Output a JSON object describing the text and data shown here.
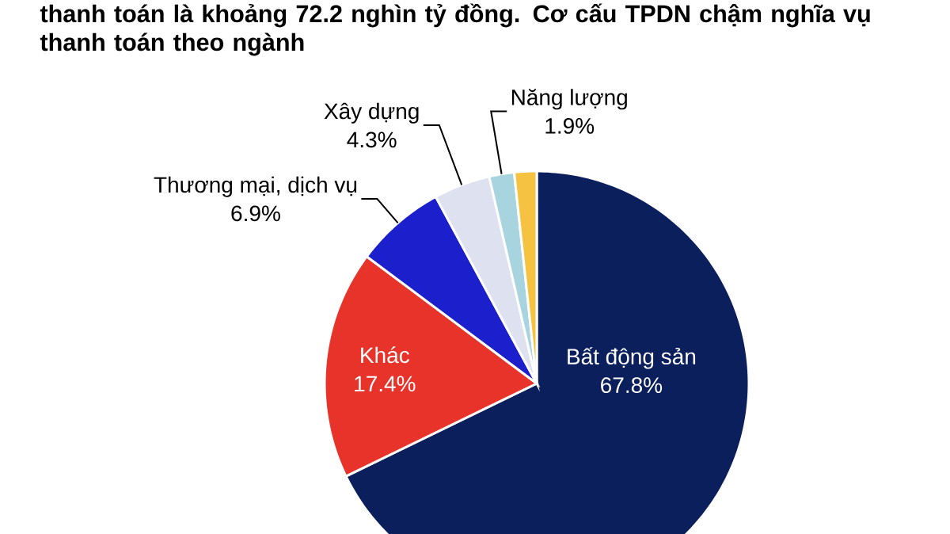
{
  "chart_data": {
    "type": "pie",
    "title": "thanh toán là khoảng 72.2 nghìn tỷ đồng. Cơ cấu TPDN chậm nghĩa vụ thanh toán theo ngành",
    "categories": [
      "Bất động sản",
      "Khác",
      "Thương mại, dịch vụ",
      "Xây dựng",
      "Năng lượng",
      null
    ],
    "values": [
      67.8,
      17.4,
      6.9,
      4.3,
      1.9,
      1.7
    ],
    "value_labels": [
      "67.8%",
      "17.4%",
      "6.9%",
      "4.3%",
      "1.9%",
      null
    ],
    "colors": [
      "#0b1f5c",
      "#e8332a",
      "#1c1fcc",
      "#dde1f0",
      "#a8d4e0",
      "#f5c242"
    ]
  }
}
